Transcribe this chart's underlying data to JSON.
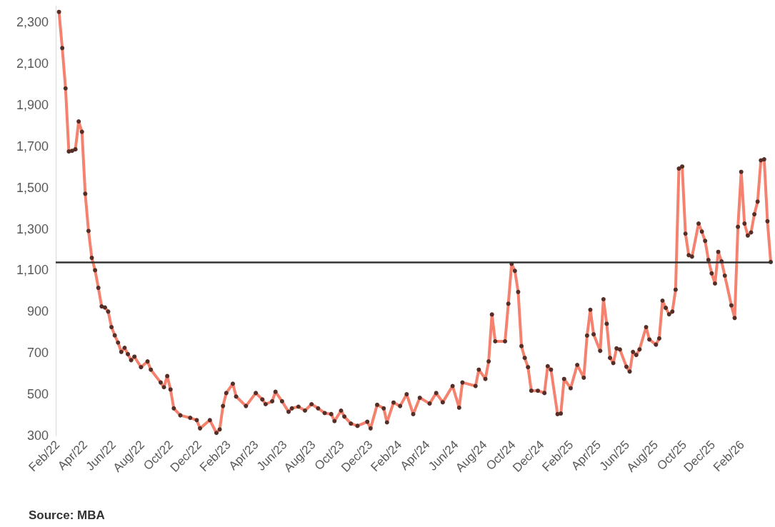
{
  "chart_data": {
    "type": "line",
    "color": "#f4826e",
    "marker": "circle",
    "line_style": "solid",
    "grid": false,
    "annotations": [
      "Source: MBA"
    ],
    "ref_lines": [
      {
        "axis": "y",
        "value": 1140,
        "color": "#333333"
      }
    ],
    "xlim": [
      "2022-01-28",
      "2026-04-06"
    ],
    "xticks": [
      {
        "value": "2022-02-01",
        "label": "Feb/22"
      },
      {
        "value": "2022-04-01",
        "label": "Apr/22"
      },
      {
        "value": "2022-06-01",
        "label": "Jun/22"
      },
      {
        "value": "2022-08-01",
        "label": "Aug/22"
      },
      {
        "value": "2022-10-01",
        "label": "Oct/22"
      },
      {
        "value": "2022-12-01",
        "label": "Dec/22"
      },
      {
        "value": "2023-02-01",
        "label": "Feb/23"
      },
      {
        "value": "2023-04-01",
        "label": "Apr/23"
      },
      {
        "value": "2023-06-01",
        "label": "Jun/23"
      },
      {
        "value": "2023-08-01",
        "label": "Aug/23"
      },
      {
        "value": "2023-10-01",
        "label": "Oct/23"
      },
      {
        "value": "2023-12-01",
        "label": "Dec/23"
      },
      {
        "value": "2024-02-01",
        "label": "Feb/24"
      },
      {
        "value": "2024-04-01",
        "label": "Apr/24"
      },
      {
        "value": "2024-06-01",
        "label": "Jun/24"
      },
      {
        "value": "2024-08-01",
        "label": "Aug/24"
      },
      {
        "value": "2024-10-01",
        "label": "Oct/24"
      },
      {
        "value": "2024-12-01",
        "label": "Dec/24"
      },
      {
        "value": "2025-02-01",
        "label": "Feb/25"
      },
      {
        "value": "2025-04-01",
        "label": "Apr/25"
      },
      {
        "value": "2025-06-01",
        "label": "Jun/25"
      },
      {
        "value": "2025-08-01",
        "label": "Aug/25"
      },
      {
        "value": "2025-10-01",
        "label": "Oct/25"
      },
      {
        "value": "2025-12-01",
        "label": "Dec/25"
      },
      {
        "value": "2026-02-01",
        "label": "Feb/26"
      }
    ],
    "ylim": [
      300,
      2380
    ],
    "yticks": [
      300,
      500,
      700,
      900,
      {
        "value": 1100,
        "label": "1,100"
      },
      {
        "value": 1300,
        "label": "1,300"
      },
      {
        "value": 1500,
        "label": "1,500"
      },
      {
        "value": 1700,
        "label": "1,700"
      },
      {
        "value": 1900,
        "label": "1,900"
      },
      {
        "value": 2100,
        "label": "2,100"
      },
      {
        "value": 2300,
        "label": "2,300"
      }
    ],
    "x": [
      "2022-02-04",
      "2022-02-11",
      "2022-02-18",
      "2022-02-25",
      "2022-03-04",
      "2022-03-11",
      "2022-03-18",
      "2022-03-25",
      "2022-04-01",
      "2022-04-08",
      "2022-04-15",
      "2022-04-22",
      "2022-04-29",
      "2022-05-06",
      "2022-05-13",
      "2022-05-20",
      "2022-05-27",
      "2022-06-03",
      "2022-06-10",
      "2022-06-17",
      "2022-06-24",
      "2022-07-01",
      "2022-07-08",
      "2022-07-15",
      "2022-07-29",
      "2022-08-12",
      "2022-08-19",
      "2022-09-09",
      "2022-09-16",
      "2022-09-23",
      "2022-09-30",
      "2022-10-07",
      "2022-10-21",
      "2022-11-11",
      "2022-11-25",
      "2022-12-02",
      "2022-12-23",
      "2023-01-06",
      "2023-01-13",
      "2023-01-20",
      "2023-01-27",
      "2023-02-10",
      "2023-02-17",
      "2023-03-10",
      "2023-03-31",
      "2023-04-14",
      "2023-04-21",
      "2023-05-05",
      "2023-05-12",
      "2023-05-26",
      "2023-06-09",
      "2023-06-16",
      "2023-06-30",
      "2023-07-14",
      "2023-07-28",
      "2023-08-11",
      "2023-08-25",
      "2023-09-08",
      "2023-09-15",
      "2023-09-29",
      "2023-10-06",
      "2023-10-20",
      "2023-11-03",
      "2023-11-24",
      "2023-12-01",
      "2023-12-15",
      "2023-12-29",
      "2024-01-05",
      "2024-01-19",
      "2024-02-02",
      "2024-02-16",
      "2024-03-01",
      "2024-03-15",
      "2024-04-05",
      "2024-04-19",
      "2024-05-03",
      "2024-05-24",
      "2024-06-07",
      "2024-06-14",
      "2024-07-12",
      "2024-07-19",
      "2024-08-02",
      "2024-08-09",
      "2024-08-16",
      "2024-08-23",
      "2024-09-13",
      "2024-09-20",
      "2024-09-27",
      "2024-10-04",
      "2024-10-11",
      "2024-10-18",
      "2024-10-25",
      "2024-11-01",
      "2024-11-08",
      "2024-11-22",
      "2024-12-06",
      "2024-12-13",
      "2024-12-20",
      "2025-01-03",
      "2025-01-10",
      "2025-01-17",
      "2025-01-31",
      "2025-02-14",
      "2025-02-28",
      "2025-03-07",
      "2025-03-14",
      "2025-03-21",
      "2025-04-04",
      "2025-04-11",
      "2025-04-18",
      "2025-04-25",
      "2025-05-02",
      "2025-05-09",
      "2025-05-16",
      "2025-05-30",
      "2025-06-06",
      "2025-06-13",
      "2025-06-20",
      "2025-06-27",
      "2025-07-11",
      "2025-07-18",
      "2025-08-01",
      "2025-08-08",
      "2025-08-15",
      "2025-08-22",
      "2025-08-29",
      "2025-09-05",
      "2025-09-12",
      "2025-09-19",
      "2025-09-26",
      "2025-10-03",
      "2025-10-10",
      "2025-10-17",
      "2025-10-31",
      "2025-11-07",
      "2025-11-14",
      "2025-11-21",
      "2025-11-28",
      "2025-12-05",
      "2025-12-12",
      "2025-12-19",
      "2025-12-26",
      "2026-01-09",
      "2026-01-16",
      "2026-01-23",
      "2026-01-30",
      "2026-02-06",
      "2026-02-13",
      "2026-02-20",
      "2026-02-27",
      "2026-03-06",
      "2026-03-13",
      "2026-03-20",
      "2026-03-27",
      "2026-04-03"
    ],
    "values": [
      2350,
      2175,
      1980,
      1675,
      1678,
      1685,
      1820,
      1770,
      1470,
      1290,
      1160,
      1100,
      1015,
      925,
      920,
      900,
      825,
      785,
      750,
      705,
      725,
      694,
      665,
      682,
      631,
      659,
      619,
      557,
      534,
      588,
      523,
      432,
      398,
      386,
      375,
      335,
      375,
      313,
      330,
      443,
      506,
      551,
      489,
      443,
      506,
      475,
      452,
      466,
      512,
      466,
      415,
      432,
      440,
      421,
      452,
      432,
      409,
      404,
      370,
      421,
      392,
      358,
      347,
      367,
      335,
      449,
      432,
      364,
      460,
      443,
      500,
      404,
      483,
      455,
      506,
      461,
      540,
      435,
      557,
      540,
      619,
      574,
      659,
      886,
      756,
      756,
      938,
      1131,
      1097,
      995,
      733,
      676,
      631,
      517,
      517,
      506,
      636,
      619,
      404,
      407,
      574,
      529,
      642,
      580,
      784,
      909,
      790,
      710,
      960,
      841,
      676,
      651,
      722,
      717,
      633,
      610,
      705,
      690,
      717,
      825,
      765,
      740,
      770,
      953,
      918,
      887,
      900,
      1006,
      1592,
      1602,
      1277,
      1173,
      1166,
      1326,
      1287,
      1242,
      1150,
      1085,
      1036,
      1189,
      1143,
      1074,
      930,
      869,
      1310,
      1576,
      1326,
      1268,
      1283,
      1371,
      1432,
      1632,
      1637,
      1337,
      1140
    ]
  }
}
